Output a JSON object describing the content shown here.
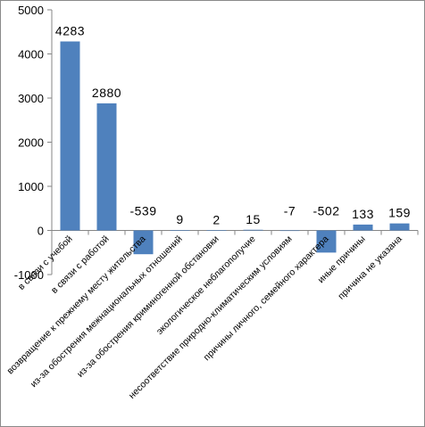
{
  "chart_data": {
    "type": "bar",
    "title": "",
    "xlabel": "",
    "ylabel": "",
    "ylim": [
      -1000,
      5000
    ],
    "yticks": [
      -1000,
      0,
      1000,
      2000,
      3000,
      4000,
      5000
    ],
    "ytick_labels": [
      "-1000",
      "0",
      "1000",
      "2000",
      "3000",
      "4000",
      "5000"
    ],
    "grid": false,
    "legend": "none",
    "bar_color": "#4f81bd",
    "categories": [
      "в связи с учебой",
      "в связи с работой",
      "возвращение к прежнему месту жительства",
      "из-за обострения межнациональных отношений",
      "из-за обострения криминогенной обстановки",
      "экологическое неблагополучие",
      "несоответствие природно-климатическим условиям",
      "причины личного, семейного характера",
      "иные причины",
      "причина не указана"
    ],
    "values": [
      4283,
      2880,
      -539,
      9,
      2,
      15,
      -7,
      -502,
      133,
      159
    ],
    "data_labels": [
      "4283",
      "2880",
      "-539",
      "9",
      "2",
      "15",
      "-7",
      "-502",
      "133",
      "159"
    ]
  }
}
